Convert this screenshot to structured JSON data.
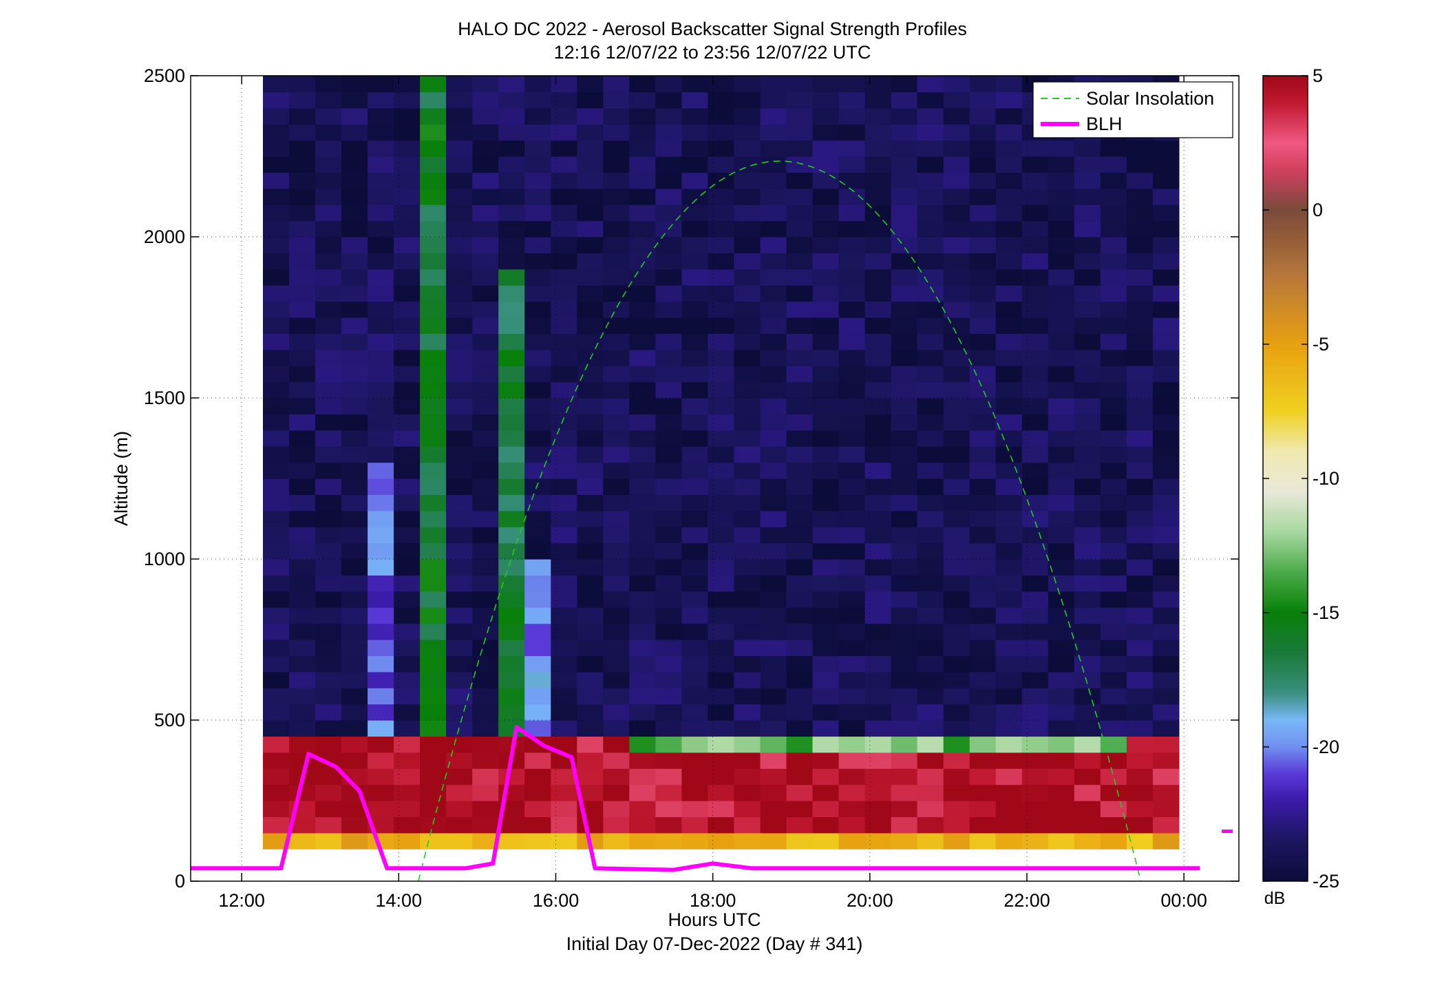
{
  "figure": {
    "title_line1": "HALO DC 2022 - Aerosol Backscatter Signal Strength Profiles",
    "title_line2": "12:16 12/07/22 to 23:56 12/07/22  UTC",
    "xlabel": "Hours UTC",
    "xlabel_sub": "Initial Day 07-Dec-2022 (Day # 341)",
    "ylabel": "Altitude (m)",
    "colorbar_unit": "dB"
  },
  "chart_data": {
    "type": "heatmap",
    "title": "HALO DC 2022 - Aerosol Backscatter Signal Strength Profiles",
    "subtitle": "12:16 12/07/22 to 23:56 12/07/22  UTC",
    "xlabel": "Hours UTC",
    "ylabel": "Altitude (m)",
    "xlim_hours": [
      11.35,
      24.7
    ],
    "ylim": [
      0,
      2500
    ],
    "grid": true,
    "legend_placement": "top-right",
    "x_ticks": [
      {
        "value": 12,
        "label": "12:00"
      },
      {
        "value": 14,
        "label": "14:00"
      },
      {
        "value": 16,
        "label": "16:00"
      },
      {
        "value": 18,
        "label": "18:00"
      },
      {
        "value": 20,
        "label": "20:00"
      },
      {
        "value": 22,
        "label": "22:00"
      },
      {
        "value": 24,
        "label": "00:00"
      }
    ],
    "y_ticks": [
      {
        "value": 0,
        "label": "0"
      },
      {
        "value": 500,
        "label": "500"
      },
      {
        "value": 1000,
        "label": "1000"
      },
      {
        "value": 1500,
        "label": "1500"
      },
      {
        "value": 2000,
        "label": "2000"
      },
      {
        "value": 2500,
        "label": "2500"
      }
    ],
    "colorbar": {
      "label": "dB",
      "range": [
        -25,
        5
      ],
      "ticks": [
        {
          "value": 5,
          "label": "5"
        },
        {
          "value": 0,
          "label": "0"
        },
        {
          "value": -5,
          "label": "-5"
        },
        {
          "value": -10,
          "label": "-10"
        },
        {
          "value": -15,
          "label": "-15"
        },
        {
          "value": -20,
          "label": "-20"
        },
        {
          "value": -25,
          "label": "-25"
        }
      ],
      "stops": [
        {
          "v": -25,
          "c": "#0c0c3a"
        },
        {
          "v": -23.5,
          "c": "#1c1660"
        },
        {
          "v": -22,
          "c": "#3a1aa8"
        },
        {
          "v": -21,
          "c": "#5a3ad8"
        },
        {
          "v": -20,
          "c": "#7090f0"
        },
        {
          "v": -19,
          "c": "#78b8f8"
        },
        {
          "v": -18,
          "c": "#3a9080"
        },
        {
          "v": -16.5,
          "c": "#1a7a3a"
        },
        {
          "v": -15,
          "c": "#088008"
        },
        {
          "v": -13.5,
          "c": "#4aaa4a"
        },
        {
          "v": -12,
          "c": "#a8d8a0"
        },
        {
          "v": -10.5,
          "c": "#e8e8d8"
        },
        {
          "v": -9,
          "c": "#f0e8b0"
        },
        {
          "v": -7.5,
          "c": "#f0d020"
        },
        {
          "v": -5,
          "c": "#e8a010"
        },
        {
          "v": -2.5,
          "c": "#b8783a"
        },
        {
          "v": 0,
          "c": "#7a4a3a"
        },
        {
          "v": 1.5,
          "c": "#d04060"
        },
        {
          "v": 2.5,
          "c": "#f05880"
        },
        {
          "v": 4,
          "c": "#c01830"
        },
        {
          "v": 5,
          "c": "#a00818"
        }
      ]
    },
    "heatmap": {
      "time_start_hours": 12.27,
      "bin_minutes": 20,
      "altitude_bin_m": 50,
      "columns": 35,
      "background_db": -24,
      "features": [
        {
          "name": "surface layer",
          "x_range_hours": [
            12.27,
            24.0
          ],
          "alt_range_m": [
            150,
            450
          ],
          "db": 4.5
        },
        {
          "name": "near-surface bins",
          "x_range_hours": [
            12.27,
            24.0
          ],
          "alt_range_m": [
            100,
            150
          ],
          "db": -6
        },
        {
          "name": "top of boundary layer",
          "x_range_hours": [
            16.9,
            23.3
          ],
          "alt_range_m": [
            400,
            450
          ],
          "db": -13
        },
        {
          "name": "aerosol column 1",
          "x_range_hours": [
            13.6,
            14.0
          ],
          "alt_range_m": [
            450,
            1300
          ],
          "db": -20.5
        },
        {
          "name": "aerosol column 2",
          "x_range_hours": [
            14.3,
            14.65
          ],
          "alt_range_m": [
            450,
            2500
          ],
          "db": -16
        },
        {
          "name": "aerosol column 3",
          "x_range_hours": [
            15.3,
            15.65
          ],
          "alt_range_m": [
            450,
            1900
          ],
          "db": -16.5
        },
        {
          "name": "aerosol column 4",
          "x_range_hours": [
            15.65,
            16.0
          ],
          "alt_range_m": [
            450,
            1000
          ],
          "db": -20
        }
      ]
    },
    "series": [
      {
        "name": "BLH",
        "color": "#ff00ff",
        "points": [
          [
            11.35,
            40
          ],
          [
            12.5,
            40
          ],
          [
            12.85,
            395
          ],
          [
            13.2,
            355
          ],
          [
            13.5,
            280
          ],
          [
            13.85,
            40
          ],
          [
            14.85,
            40
          ],
          [
            15.2,
            55
          ],
          [
            15.5,
            478
          ],
          [
            15.85,
            420
          ],
          [
            16.2,
            385
          ],
          [
            16.5,
            40
          ],
          [
            17.5,
            35
          ],
          [
            18.0,
            55
          ],
          [
            18.5,
            40
          ],
          [
            24.2,
            40
          ]
        ],
        "outlier_point": [
          24.55,
          155
        ]
      },
      {
        "name": "Solar Insolation",
        "color": "#22cc22",
        "style": "dashed",
        "curve": "parabola",
        "start": [
          14.25,
          0
        ],
        "peak": [
          18.85,
          2235
        ],
        "end": [
          23.45,
          0
        ]
      }
    ]
  }
}
